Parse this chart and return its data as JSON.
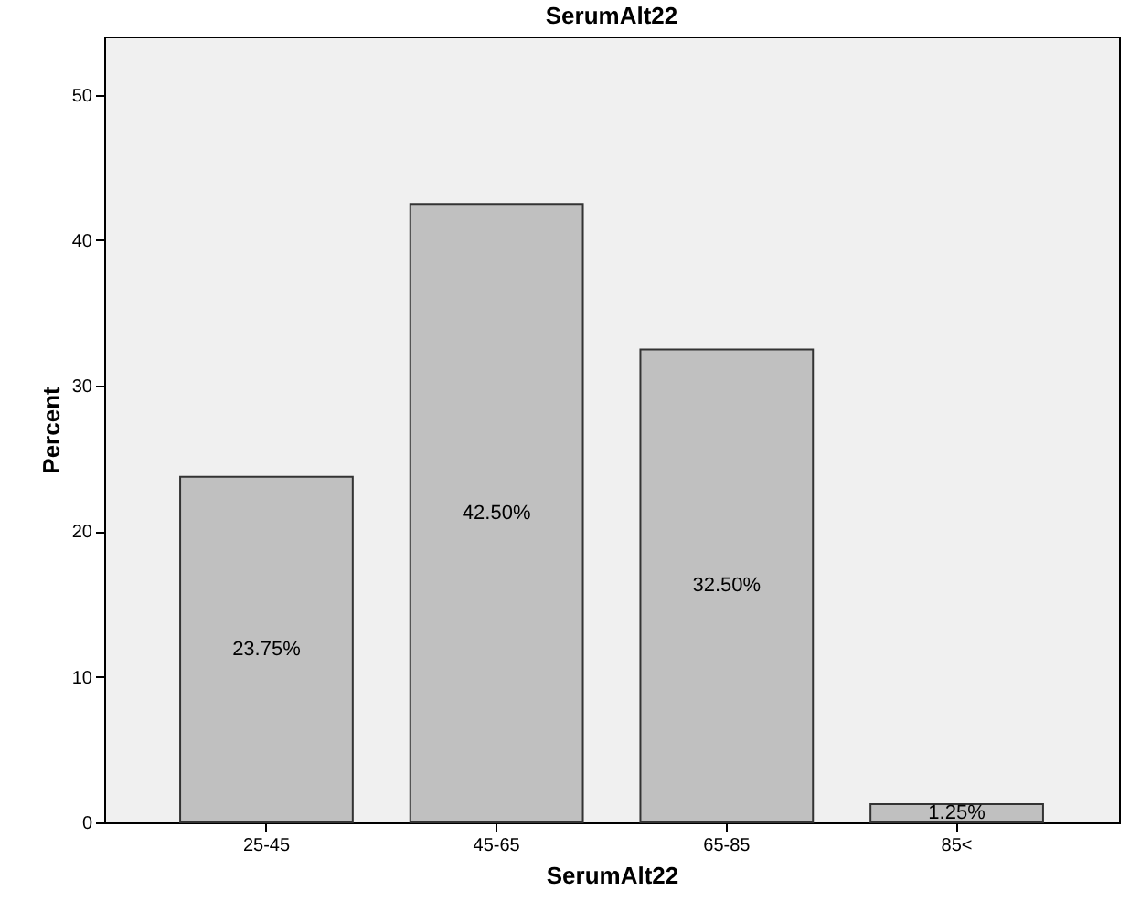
{
  "chart_data": {
    "type": "bar",
    "title": "SerumAlt22",
    "xlabel": "SerumAlt22",
    "ylabel": "Percent",
    "categories": [
      "25-45",
      "45-65",
      "65-85",
      "85<"
    ],
    "values": [
      23.75,
      42.5,
      32.5,
      1.25
    ],
    "value_labels": [
      "23.75%",
      "42.50%",
      "32.50%",
      "1.25%"
    ],
    "color": "#c0c0c0",
    "ylim": [
      0,
      54
    ],
    "yticks": [
      0,
      10,
      20,
      30,
      40,
      50
    ]
  }
}
